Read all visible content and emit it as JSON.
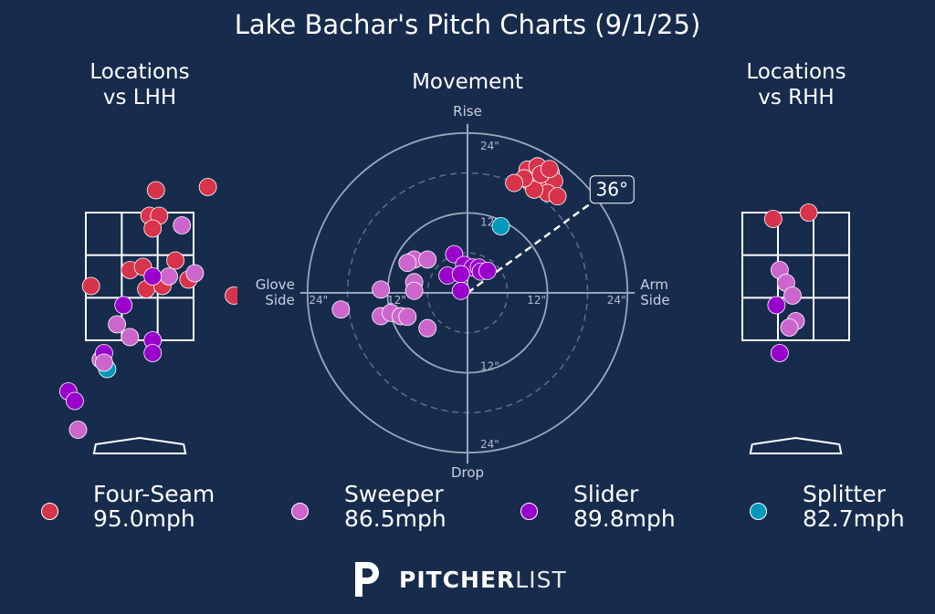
{
  "header": {
    "title": "Lake Bachar's Pitch Charts (9/1/25)"
  },
  "panels": {
    "lhh_title_line1": "Locations",
    "lhh_title_line2": "vs LHH",
    "rhh_title_line1": "Locations",
    "rhh_title_line2": "vs RHH",
    "movement_title": "Movement"
  },
  "colors": {
    "background": "#172b4d",
    "Four-Seam": "#d7334b",
    "Sweeper": "#cc66cc",
    "Slider": "#9900cc",
    "Splitter": "#0099bb"
  },
  "legend": [
    {
      "pitch": "Four-Seam",
      "velo": "95.0mph"
    },
    {
      "pitch": "Sweeper",
      "velo": "86.5mph"
    },
    {
      "pitch": "Slider",
      "velo": "89.8mph"
    },
    {
      "pitch": "Splitter",
      "velo": "82.7mph"
    }
  ],
  "brand": {
    "logo_bold": "PITCHER",
    "logo_thin": "LIST"
  },
  "chart_data": [
    {
      "type": "scatter",
      "title": "Movement",
      "axis_labels": {
        "top": "Rise",
        "bottom": "Drop",
        "left_line1": "Glove",
        "left_line2": "Side",
        "right_line1": "Arm",
        "right_line2": "Side"
      },
      "ring_labels": [
        "12\"",
        "24\""
      ],
      "arm_angle_label": "36°",
      "arm_angle_deg": 36,
      "units": "inches",
      "range": [
        -24,
        24
      ],
      "series": [
        {
          "name": "Four-Seam",
          "points": [
            [
              9,
              18.5
            ],
            [
              10.5,
              19
            ],
            [
              12.5,
              18
            ],
            [
              11,
              17
            ],
            [
              9.5,
              16.5
            ],
            [
              12,
              16
            ],
            [
              13,
              16.8
            ],
            [
              12,
              15
            ],
            [
              13.5,
              14.5
            ],
            [
              10,
              15.5
            ],
            [
              8.5,
              17.2
            ],
            [
              7,
              16.5
            ],
            [
              11,
              17.8
            ],
            [
              12.3,
              18.6
            ]
          ]
        },
        {
          "name": "Sweeper",
          "points": [
            [
              -8,
              5
            ],
            [
              -6,
              5
            ],
            [
              -9,
              4.5
            ],
            [
              -8,
              1.6
            ],
            [
              -8,
              0.3
            ],
            [
              -13,
              0.5
            ],
            [
              -19,
              -2.5
            ],
            [
              -13,
              -3.5
            ],
            [
              -11.5,
              -3
            ],
            [
              -10,
              -3.5
            ],
            [
              -9,
              -3.6
            ],
            [
              -6,
              -5.3
            ]
          ]
        },
        {
          "name": "Slider",
          "points": [
            [
              -2,
              5.8
            ],
            [
              -0.5,
              4.2
            ],
            [
              0.8,
              3.8
            ],
            [
              1.7,
              3.8
            ],
            [
              2,
              3.2
            ],
            [
              3,
              3.3
            ],
            [
              -3,
              2.6
            ],
            [
              -1,
              2.8
            ],
            [
              -1,
              0.3
            ]
          ]
        },
        {
          "name": "Splitter",
          "points": [
            [
              5,
              10
            ]
          ]
        }
      ]
    },
    {
      "type": "scatter",
      "title": "Locations vs LHH",
      "units": "feet",
      "strike_zone": {
        "x": [
          -0.83,
          0.83
        ],
        "z": [
          1.5,
          3.5
        ]
      },
      "series": [
        {
          "name": "Four-Seam",
          "points": [
            [
              0.25,
              3.85
            ],
            [
              1.05,
              3.9
            ],
            [
              0.15,
              3.45
            ],
            [
              0.3,
              3.45
            ],
            [
              0.2,
              3.25
            ],
            [
              0.55,
              2.75
            ],
            [
              -0.15,
              2.6
            ],
            [
              0.05,
              2.65
            ],
            [
              0.75,
              2.45
            ],
            [
              -0.75,
              2.35
            ],
            [
              0.1,
              2.3
            ],
            [
              0.35,
              2.35
            ],
            [
              1.45,
              2.2
            ]
          ]
        },
        {
          "name": "Sweeper",
          "points": [
            [
              0.65,
              3.3
            ],
            [
              0.45,
              2.5
            ],
            [
              0.85,
              2.55
            ],
            [
              -0.35,
              1.75
            ],
            [
              -0.15,
              1.55
            ],
            [
              -0.6,
              1.2
            ]
          ]
        },
        {
          "name": "Slider",
          "points": [
            [
              0.2,
              2.5
            ],
            [
              -0.25,
              2.05
            ],
            [
              0.2,
              1.5
            ],
            [
              0.2,
              1.3
            ],
            [
              -0.55,
              1.3
            ],
            [
              -1.1,
              0.7
            ]
          ]
        },
        {
          "name": "Splitter",
          "points": [
            [
              -0.5,
              1.05
            ]
          ]
        },
        {
          "name": "Sweeper",
          "points": [
            [
              -0.55,
              1.15
            ],
            [
              -0.95,
              0.1
            ]
          ]
        },
        {
          "name": "Slider",
          "points": [
            [
              -1.0,
              0.55
            ]
          ]
        }
      ]
    },
    {
      "type": "scatter",
      "title": "Locations vs RHH",
      "units": "feet",
      "strike_zone": {
        "x": [
          -0.83,
          0.83
        ],
        "z": [
          1.5,
          3.5
        ]
      },
      "series": [
        {
          "name": "Four-Seam",
          "points": [
            [
              0.2,
              3.5
            ],
            [
              -0.35,
              3.4
            ]
          ]
        },
        {
          "name": "Sweeper",
          "points": [
            [
              -0.25,
              2.6
            ],
            [
              -0.15,
              2.4
            ],
            [
              -0.05,
              2.2
            ],
            [
              0.0,
              1.8
            ],
            [
              -0.1,
              1.7
            ]
          ]
        },
        {
          "name": "Slider",
          "points": [
            [
              -0.3,
              2.05
            ],
            [
              -0.25,
              1.3
            ]
          ]
        }
      ]
    }
  ]
}
